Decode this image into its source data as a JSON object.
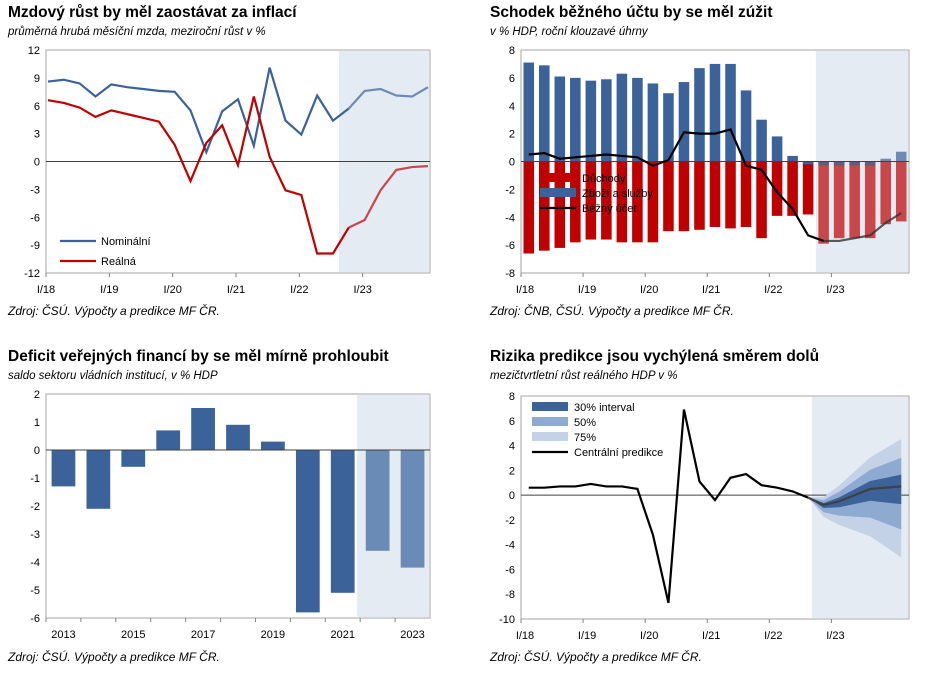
{
  "colors": {
    "nominal": "#3b6299",
    "real": "#c00000",
    "balance": "#000000",
    "forecast_bg": "#e4ebf3",
    "bar_hist": "#3b6299",
    "bar_fc": "#6a8bb5",
    "fan30": "#3b6299",
    "fan50": "#8eaad0",
    "fan75": "#c3d2e6"
  },
  "panels": [
    {
      "title": "Mzdový růst by měl zaostávat za inflací",
      "subtitle": "průměrná hrubá měsíční mzda, meziroční růst v %",
      "source": "Zdroj: ČSÚ. Výpočty a predikce MF ČR."
    },
    {
      "title": "Schodek běžného účtu by se měl zúžit",
      "subtitle": "v % HDP, roční klouzavé úhrny",
      "source": "Zdroj: ČNB, ČSÚ. Výpočty a predikce MF ČR."
    },
    {
      "title": "Deficit veřejných financí by se měl mírně prohloubit",
      "subtitle": "saldo sektoru vládních institucí, v % HDP",
      "source": "Zdroj: ČSÚ. Výpočty a predikce MF ČR."
    },
    {
      "title": "Rizika predikce jsou vychýlená směrem dolů",
      "subtitle": "mezičtvrtletní růst reálného HDP v %",
      "source": "Zdroj: ČSÚ. Výpočty a predikce MF ČR."
    }
  ],
  "chart_data": [
    {
      "type": "line",
      "x_labels": [
        "I/18",
        "I/19",
        "I/20",
        "I/21",
        "I/22",
        "I/23"
      ],
      "ylim": [
        -12,
        12
      ],
      "yticks": [
        "12",
        "9",
        "6",
        "3",
        "0",
        "-3",
        "-6",
        "-9",
        "-12"
      ],
      "forecast_from_index": 19,
      "legend": [
        "Nominální",
        "Reálná"
      ],
      "series": [
        {
          "name": "Nominální",
          "values": [
            8.6,
            8.8,
            8.4,
            7.0,
            8.3,
            8.0,
            7.8,
            7.6,
            7.5,
            5.5,
            1.0,
            5.4,
            6.7,
            1.7,
            10.1,
            4.4,
            2.9,
            7.1,
            4.4,
            5.7,
            7.6,
            7.8,
            7.1,
            7.0,
            8.0
          ]
        },
        {
          "name": "Reálná",
          "values": [
            6.6,
            6.3,
            5.8,
            4.8,
            5.5,
            5.1,
            4.7,
            4.3,
            1.8,
            -2.1,
            2.0,
            3.9,
            -0.4,
            7.0,
            0.5,
            -3.1,
            -3.6,
            -9.9,
            -9.9,
            -7.1,
            -6.3,
            -3.1,
            -0.9,
            -0.6,
            -0.5
          ]
        }
      ]
    },
    {
      "type": "bar",
      "x_labels": [
        "I/18",
        "I/19",
        "I/20",
        "I/21",
        "I/22",
        "I/23"
      ],
      "ylim": [
        -8,
        8
      ],
      "yticks": [
        "8",
        "6",
        "4",
        "2",
        "0",
        "-2",
        "-4",
        "-6",
        "-8"
      ],
      "forecast_from_index": 19,
      "legend": [
        "Důchody",
        "Zboží a služby",
        "Běžný účet"
      ],
      "series": [
        {
          "name": "Důchody",
          "values": [
            -6.6,
            -6.4,
            -6.2,
            -5.8,
            -5.6,
            -5.6,
            -5.8,
            -5.8,
            -5.8,
            -5.0,
            -5.0,
            -4.9,
            -4.7,
            -4.8,
            -4.7,
            -5.5,
            -3.9,
            -3.9,
            -3.8,
            -5.9,
            -5.5,
            -5.5,
            -5.5,
            -4.5,
            -4.3
          ]
        },
        {
          "name": "Zboží a služby",
          "values": [
            7.1,
            6.9,
            6.1,
            6.0,
            5.8,
            5.9,
            6.3,
            6.0,
            5.6,
            4.9,
            5.7,
            6.7,
            7.0,
            7.0,
            5.1,
            3.0,
            1.8,
            0.4,
            -0.2,
            -0.3,
            -0.3,
            -0.3,
            -0.3,
            0.2,
            0.7
          ]
        },
        {
          "name": "Běžný účet",
          "values": [
            0.5,
            0.6,
            0.2,
            0.3,
            0.4,
            0.5,
            0.4,
            0.3,
            -0.3,
            0.1,
            2.1,
            2.0,
            2.0,
            2.3,
            -0.3,
            -0.6,
            -2.2,
            -3.4,
            -5.3,
            -5.7,
            -5.7,
            -5.5,
            -5.3,
            -4.4,
            -3.7
          ]
        }
      ]
    },
    {
      "type": "bar",
      "categories": [
        "2013",
        "2014",
        "2015",
        "2016",
        "2017",
        "2018",
        "2019",
        "2020",
        "2021",
        "2022",
        "2023"
      ],
      "x_labels": [
        "2013",
        "2015",
        "2017",
        "2019",
        "2021",
        "2023"
      ],
      "ylim": [
        -6,
        2
      ],
      "yticks": [
        "2",
        "1",
        "0",
        "-1",
        "-2",
        "-3",
        "-4",
        "-5",
        "-6"
      ],
      "forecast_categories": [
        "2022",
        "2023"
      ],
      "values": [
        -1.3,
        -2.1,
        -0.6,
        0.7,
        1.5,
        0.9,
        0.3,
        -5.8,
        -5.1,
        -3.6,
        -4.2
      ]
    },
    {
      "type": "area",
      "x_labels": [
        "I/18",
        "I/19",
        "I/20",
        "I/21",
        "I/22",
        "I/23"
      ],
      "ylim": [
        -10,
        8
      ],
      "yticks": [
        "8",
        "6",
        "4",
        "2",
        "0",
        "-2",
        "-4",
        "-6",
        "-8",
        "-10"
      ],
      "forecast_from_index": 19,
      "legend": [
        "30% interval",
        "50%",
        "75%",
        "Centrální predikce"
      ],
      "central": [
        0.6,
        0.6,
        0.7,
        0.7,
        0.9,
        0.7,
        0.7,
        0.5,
        -3.2,
        -8.7,
        6.9,
        1.1,
        -0.4,
        1.4,
        1.7,
        0.8,
        0.6,
        0.3,
        -0.2,
        -0.8,
        -0.5,
        0.0,
        0.5,
        0.6,
        0.7
      ],
      "fan_widths": {
        "30%": 0.35,
        "50%": 0.85,
        "75%": 1.4
      }
    }
  ]
}
